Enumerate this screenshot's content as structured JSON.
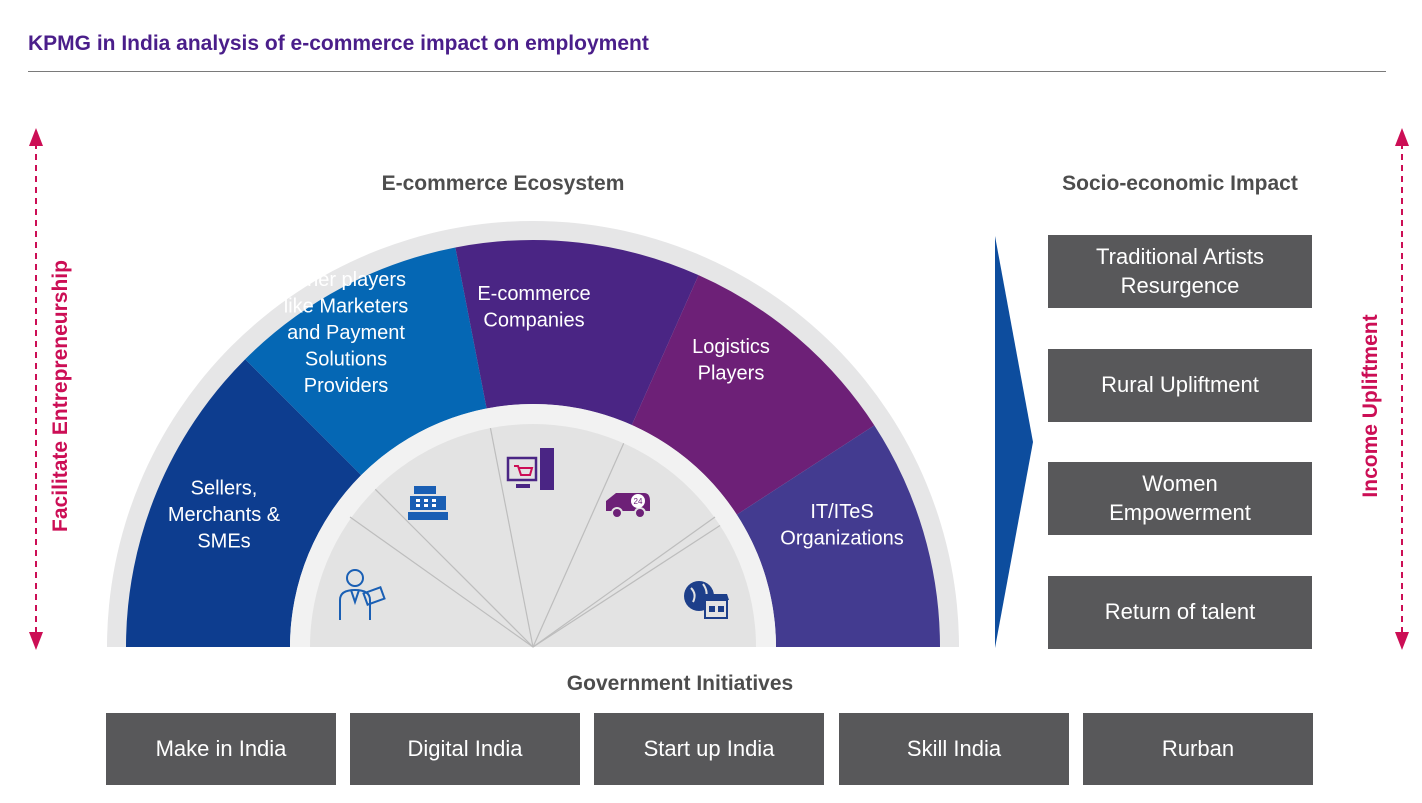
{
  "title": "KPMG in India analysis of e-commerce impact on employment",
  "ecosystem": {
    "heading": "E-commerce Ecosystem",
    "segments": [
      {
        "lines": [
          "Sellers,",
          "Merchants &",
          "SMEs"
        ],
        "color": "#0d3d8f"
      },
      {
        "lines": [
          "Other players",
          "like Marketers",
          "and Payment",
          "Solutions",
          "Providers"
        ],
        "color": "#0567b4"
      },
      {
        "lines": [
          "E-commerce",
          "Companies"
        ],
        "color": "#4a2584"
      },
      {
        "lines": [
          "Logistics",
          "Players"
        ],
        "color": "#6d2077"
      },
      {
        "lines": [
          "IT/ITeS",
          "Organizations"
        ],
        "color": "#433b90"
      }
    ],
    "icons": [
      "person-with-money-icon",
      "cash-register-icon",
      "computer-shopping-cart-icon",
      "delivery-van-24-icon",
      "globe-store-icon"
    ]
  },
  "impact": {
    "heading": "Socio-economic Impact",
    "items": [
      "Traditional Artists Resurgence",
      "Rural Upliftment",
      "Women Empowerment",
      "Return of talent"
    ]
  },
  "government": {
    "heading": "Government Initiatives",
    "items": [
      "Make in India",
      "Digital India",
      "Start up India",
      "Skill India",
      "Rurban"
    ]
  },
  "left_axis_label": "Facilitate Entrepreneurship",
  "right_axis_label": "Income Upliftment",
  "colors": {
    "title": "#4a1e8a",
    "accent": "#cc0e55",
    "box_grey": "#58585a",
    "arrow_blue": "#0d4d9e"
  }
}
